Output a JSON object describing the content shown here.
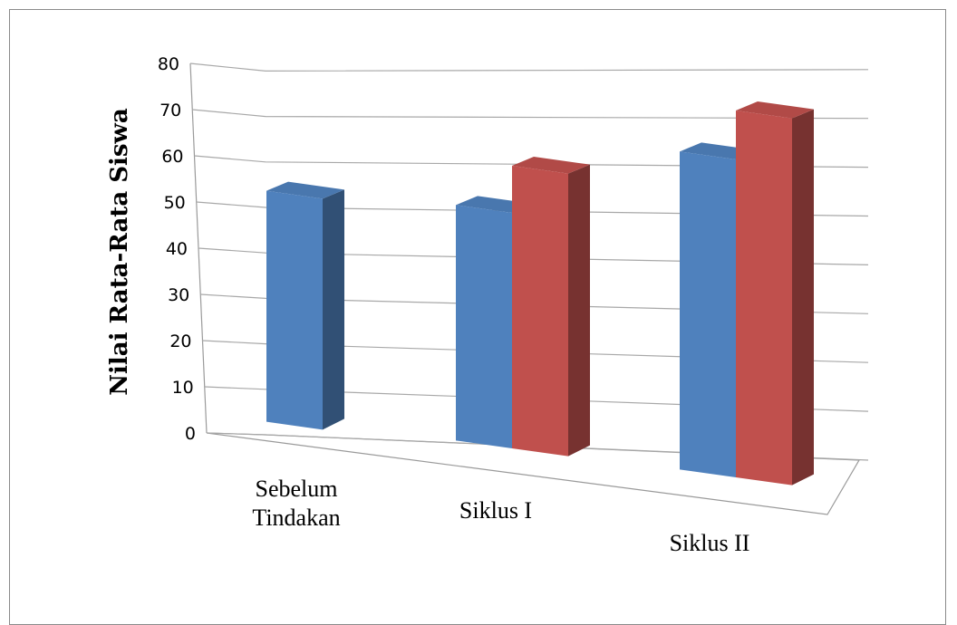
{
  "chart_data": {
    "type": "bar",
    "title": "",
    "xlabel": "",
    "ylabel": "Nilai Rata-Rata Siswa",
    "ylim": [
      0,
      80
    ],
    "yticks": [
      0,
      10,
      20,
      30,
      40,
      50,
      60,
      70,
      80
    ],
    "categories": [
      "Sebelum Tindakan",
      "Siklus I",
      "Siklus II"
    ],
    "category_lines": [
      [
        "Sebelum",
        "Tindakan"
      ],
      [
        "Siklus I"
      ],
      [
        "Siklus II"
      ]
    ],
    "series": [
      {
        "color": "#4f81bd",
        "values": [
          51,
          50,
          65
        ]
      },
      {
        "color": "#c0504d",
        "values": [
          null,
          60,
          75
        ]
      }
    ],
    "grid": true,
    "legend": "none",
    "style": "3d-column"
  }
}
